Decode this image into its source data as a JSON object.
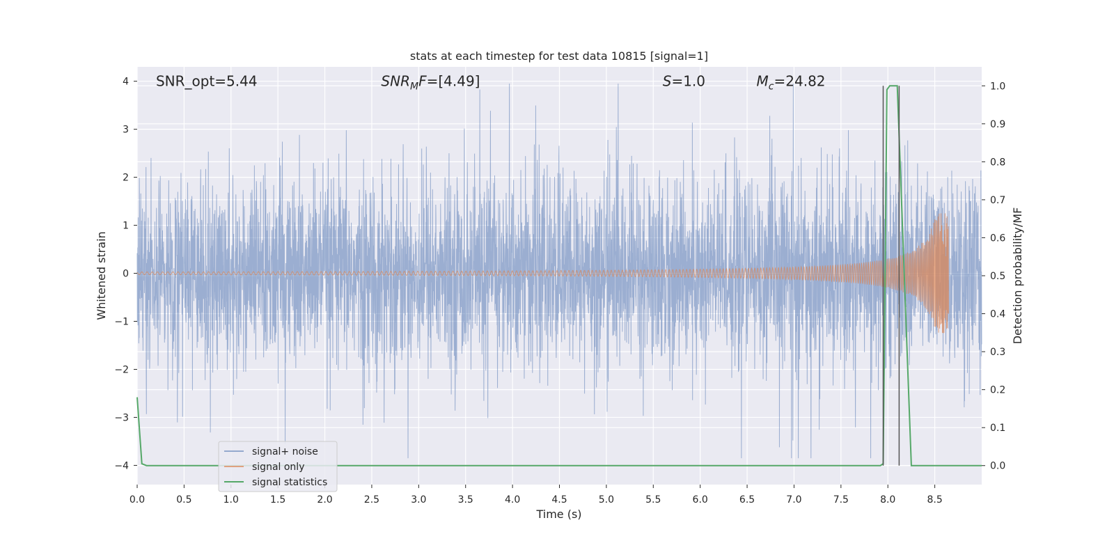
{
  "chart_data": {
    "type": "line",
    "title": "stats at each timestep for test data 10815 [signal=1]",
    "xlabel": "Time (s)",
    "ylabel": "Whitened strain",
    "ylabel_right": "Detection probability/MF",
    "xlim": [
      0,
      9.0
    ],
    "ylim": [
      -4.4,
      4.3
    ],
    "ylim_right": [
      -0.05,
      1.05
    ],
    "x_ticks": [
      0.0,
      0.5,
      1.0,
      1.5,
      2.0,
      2.5,
      3.0,
      3.5,
      4.0,
      4.5,
      5.0,
      5.5,
      6.0,
      6.5,
      7.0,
      7.5,
      8.0,
      8.5
    ],
    "x_tick_labels": [
      "0.0",
      "0.5",
      "1.0",
      "1.5",
      "2.0",
      "2.5",
      "3.0",
      "3.5",
      "4.0",
      "4.5",
      "5.0",
      "5.5",
      "6.0",
      "6.5",
      "7.0",
      "7.5",
      "8.0",
      "8.5"
    ],
    "y_ticks": [
      -4,
      -3,
      -2,
      -1,
      0,
      1,
      2,
      3,
      4
    ],
    "y_tick_labels": [
      "−4",
      "−3",
      "−2",
      "−1",
      "0",
      "1",
      "2",
      "3",
      "4"
    ],
    "y_ticks_right": [
      0.0,
      0.1,
      0.2,
      0.3,
      0.4,
      0.5,
      0.6,
      0.7,
      0.8,
      0.9,
      1.0
    ],
    "y_tick_labels_right": [
      "0.0",
      "0.1",
      "0.2",
      "0.3",
      "0.4",
      "0.5",
      "0.6",
      "0.7",
      "0.8",
      "0.9",
      "1.0"
    ],
    "grid": true,
    "legend_position": "lower-left",
    "annotations": [
      {
        "text": "SNR_opt=5.44",
        "x": 0.2,
        "y": 4.0
      },
      {
        "base": "SNR",
        "sub": "M",
        "tail": "F=[4.49]",
        "x": 2.6,
        "y": 4.0
      },
      {
        "base": "S",
        "sub": "",
        "tail": "=1.0",
        "x": 5.6,
        "y": 4.0
      },
      {
        "base": "M",
        "sub": "c",
        "tail": "=24.82",
        "x": 6.6,
        "y": 4.0
      }
    ],
    "series": [
      {
        "name": "signal+ noise",
        "color": "#4c72b0",
        "kind": "noise",
        "x_range": [
          0.0,
          9.0
        ],
        "typical_amplitude": 2.0,
        "max_positive": 3.95,
        "max_negative": -3.85
      },
      {
        "name": "signal only",
        "color": "#dd8452",
        "kind": "chirp",
        "x_range": [
          0.0,
          8.65
        ],
        "peak_amplitude": 1.25,
        "merger_time": 8.65
      },
      {
        "name": "signal statistics",
        "color": "#55a868",
        "axis": "right",
        "x": [
          0.0,
          0.05,
          0.1,
          7.92,
          7.95,
          7.99,
          8.02,
          8.1,
          8.25,
          8.3,
          9.0
        ],
        "y": [
          0.18,
          0.005,
          0.0,
          0.0,
          0.005,
          0.99,
          1.0,
          1.0,
          0.0,
          0.0,
          0.0
        ]
      }
    ],
    "vertical_lines": [
      {
        "x": 7.95,
        "y_range_right": [
          0.0,
          1.0
        ],
        "color": "#555555"
      },
      {
        "x": 8.12,
        "y_range_right": [
          0.0,
          1.0
        ],
        "color": "#555555"
      }
    ]
  }
}
